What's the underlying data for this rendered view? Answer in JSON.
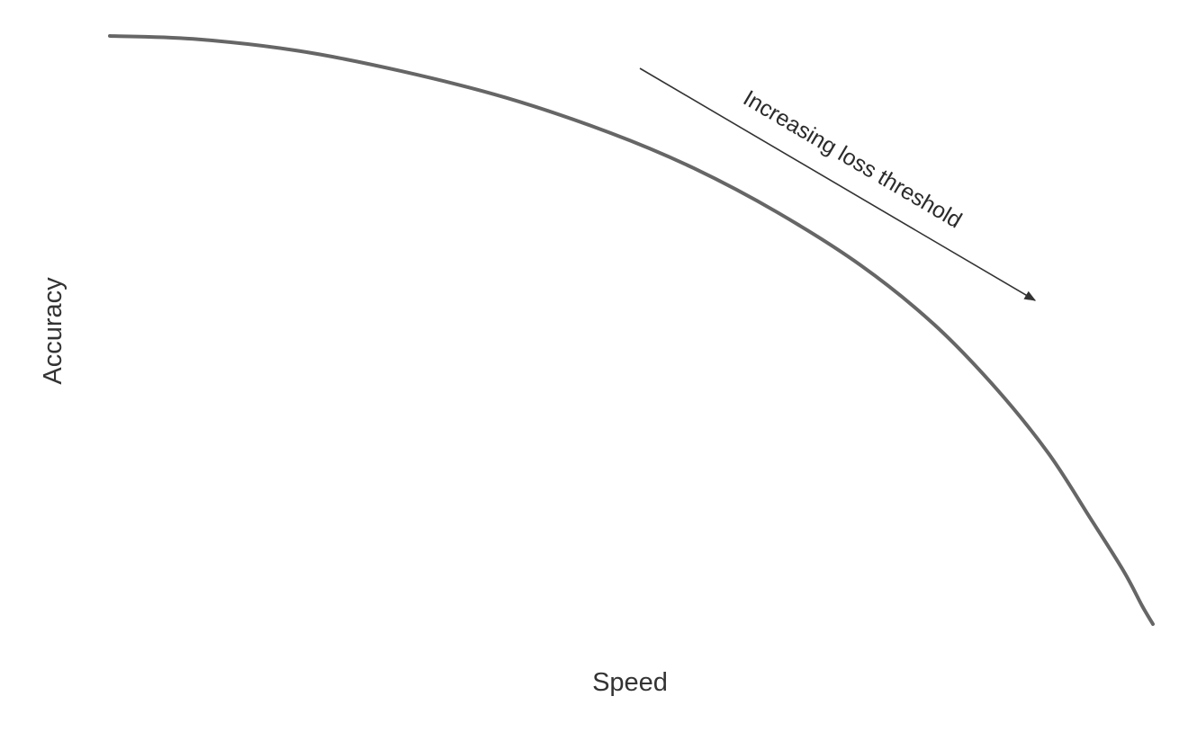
{
  "chart_data": {
    "type": "line",
    "title": "",
    "xlabel": "Speed",
    "ylabel": "Accuracy",
    "grid": false,
    "ticks_shown": false,
    "xlim": [
      0,
      1
    ],
    "ylim": [
      0,
      1
    ],
    "series": [
      {
        "values_note": "",
        "x": [
          0.0,
          0.08,
          0.18,
          0.28,
          0.38,
          0.48,
          0.56,
          0.64,
          0.72,
          0.79,
          0.85,
          0.9,
          0.94,
          0.972,
          0.99,
          1.0
        ],
        "y": [
          1.0,
          0.995,
          0.975,
          0.94,
          0.895,
          0.835,
          0.775,
          0.7,
          0.61,
          0.51,
          0.4,
          0.29,
          0.18,
          0.09,
          0.03,
          0.0
        ]
      }
    ],
    "annotations": [
      {
        "text": "Increasing loss threshold",
        "arrow": true
      }
    ],
    "colors": {
      "curve": "#666666",
      "arrow": "#333333",
      "text": "#333333"
    }
  }
}
